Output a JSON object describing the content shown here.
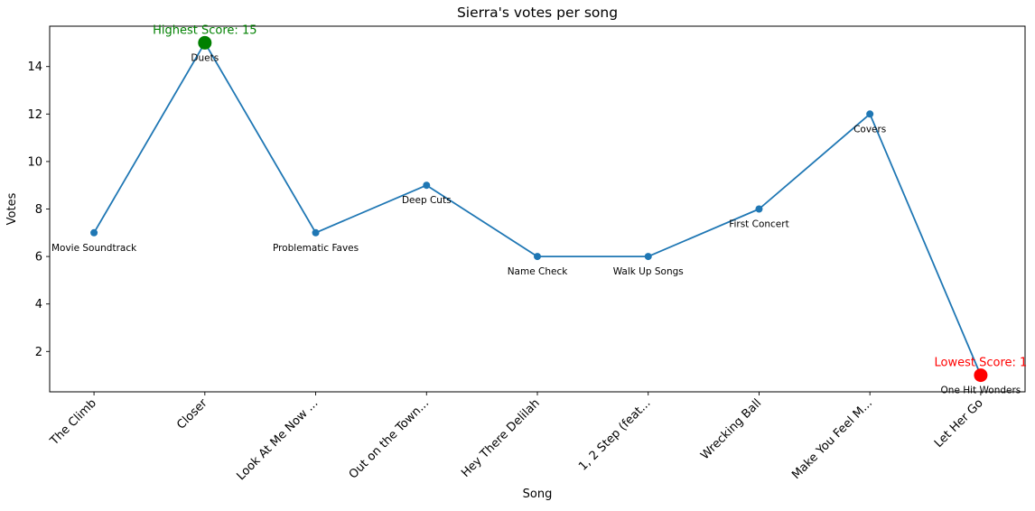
{
  "chart_data": {
    "type": "line",
    "title": "Sierra's votes per song",
    "xlabel": "Song",
    "ylabel": "Votes",
    "categories": [
      "The Climb",
      "Closer",
      "Look At Me Now ...",
      "Out on the Town...",
      "Hey There Delilah",
      "1, 2 Step (feat...",
      "Wrecking Ball",
      "Make You Feel M...",
      "Let Her Go"
    ],
    "values": [
      7,
      15,
      7,
      9,
      6,
      6,
      8,
      12,
      1
    ],
    "point_labels": [
      "Movie Soundtrack",
      "Duets",
      "Problematic Faves",
      "Deep Cuts",
      "Name Check",
      "Walk Up Songs",
      "First Concert",
      "Covers",
      "One Hit Wonders"
    ],
    "yticks": [
      2,
      4,
      6,
      8,
      10,
      12,
      14
    ],
    "xlim": [
      -0.4,
      8.4
    ],
    "ylim": [
      0.3,
      15.7
    ],
    "grid": false,
    "legend": false,
    "line_color": "#1f77b4",
    "marker_color": "#1f77b4",
    "axis_color": "#000000",
    "background": "#ffffff",
    "highlights": [
      {
        "index": 1,
        "color": "#008000",
        "annotation": "Highest Score: 15"
      },
      {
        "index": 8,
        "color": "#ff0000",
        "annotation": "Lowest Score: 1"
      }
    ]
  }
}
